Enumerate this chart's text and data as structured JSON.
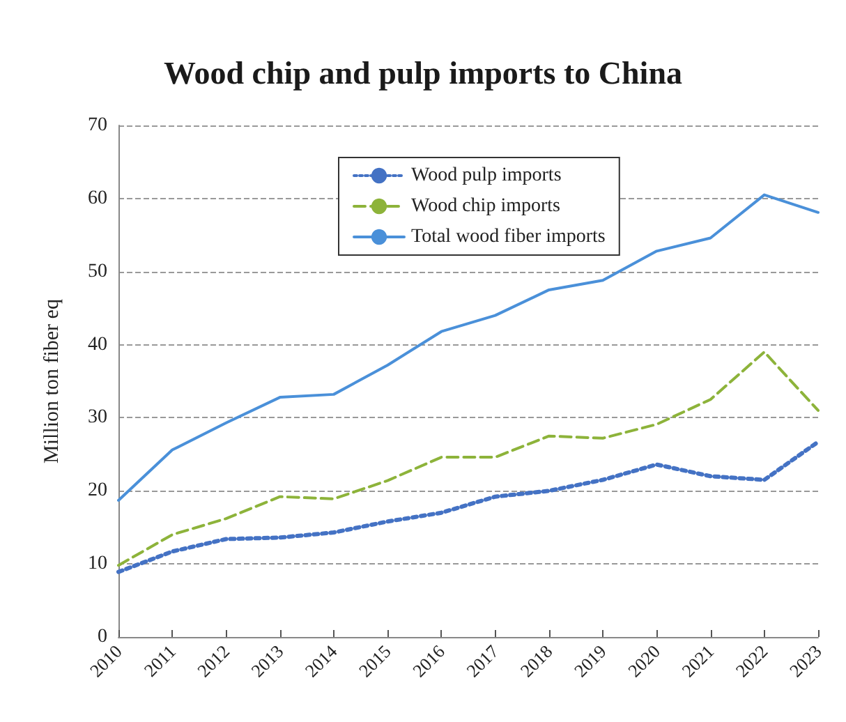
{
  "chart_data": {
    "type": "line",
    "title": "Wood chip and pulp imports to China",
    "ylabel": "Million ton fiber eq",
    "categories": [
      "2010",
      "2011",
      "2012",
      "2013",
      "2014",
      "2015",
      "2016",
      "2017",
      "2018",
      "2019",
      "2020",
      "2021",
      "2022",
      "2023"
    ],
    "series": [
      {
        "name": "Wood pulp imports",
        "color": "#4472c4",
        "line_style": "dotted",
        "values": [
          8.9,
          11.7,
          13.4,
          13.6,
          14.3,
          15.8,
          17,
          19.2,
          20,
          21.5,
          23.6,
          22,
          21.5,
          26.7
        ]
      },
      {
        "name": "Wood chip imports",
        "color": "#8db33a",
        "line_style": "dashed",
        "values": [
          9.8,
          14,
          16.2,
          19.2,
          18.9,
          21.4,
          24.6,
          24.6,
          27.5,
          27.2,
          29.1,
          32.5,
          39,
          31
        ]
      },
      {
        "name": "Total wood fiber imports",
        "color": "#4a90d9",
        "line_style": "solid",
        "values": [
          18.7,
          25.6,
          29.3,
          32.8,
          33.2,
          37.2,
          41.8,
          44,
          47.5,
          48.8,
          52.8,
          54.6,
          60.5,
          58.1
        ]
      }
    ],
    "ylim": [
      0,
      70
    ],
    "yticks": [
      0,
      10,
      20,
      30,
      40,
      50,
      60,
      70
    ],
    "grid": "y",
    "legend": "top",
    "marker": "none"
  }
}
